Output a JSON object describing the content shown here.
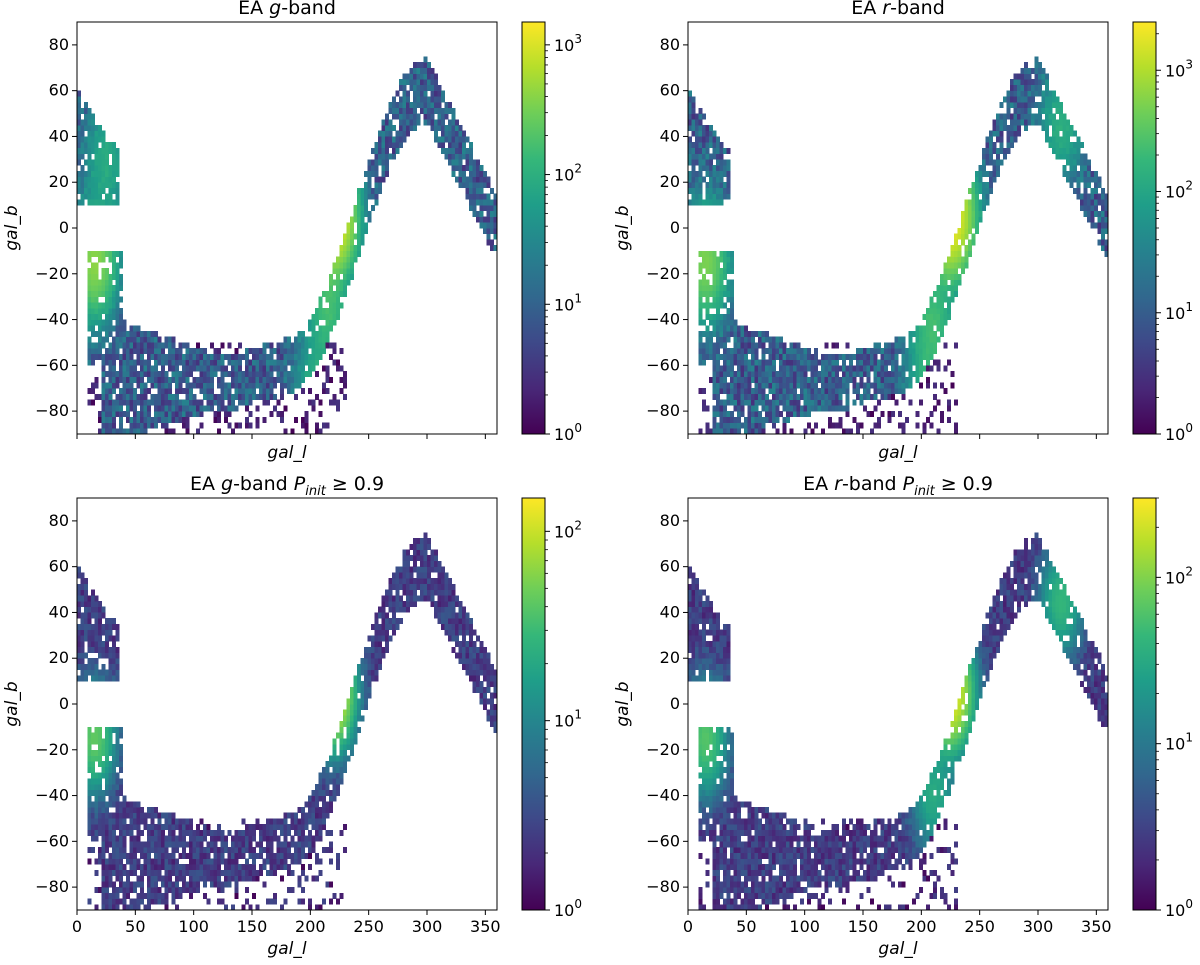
{
  "figure": {
    "colormap": "viridis",
    "colormap_stops": [
      "#440154",
      "#482878",
      "#3e4989",
      "#31688e",
      "#26828e",
      "#1f9e89",
      "#35b779",
      "#6ece58",
      "#b5de2b",
      "#fde725"
    ]
  },
  "chart_data": [
    {
      "type": "heatmap",
      "title": {
        "prefix": "EA ",
        "band": "g",
        "suffix": "-band",
        "cut": ""
      },
      "xlabel": "",
      "ylabel": "gal_b",
      "xlim": [
        0,
        360
      ],
      "ylim": [
        -90,
        90
      ],
      "xticks": [
        0,
        50,
        100,
        150,
        200,
        250,
        300,
        350
      ],
      "show_xticklabels": false,
      "yticks": [
        -80,
        -60,
        -40,
        -20,
        0,
        20,
        40,
        60,
        80
      ],
      "colorbar": {
        "scale": "log",
        "min": 1,
        "max": 1500,
        "ticks": [
          "10^0",
          "10^1",
          "10^2",
          "10^3"
        ]
      },
      "xaxis_label": "gal_l",
      "footprint": {
        "north_patch": {
          "l": [
            0,
            35
          ],
          "b": [
            10,
            60
          ]
        },
        "south_patch_l_start": 8,
        "south_patch_b_top": -10,
        "main_arc_l_range": [
          20,
          360
        ]
      },
      "hotspots": [
        {
          "l": 220,
          "b": 5,
          "count": 1300
        },
        {
          "l": 215,
          "b": -35,
          "count": 150
        },
        {
          "l": 205,
          "b": -70,
          "count": 90
        },
        {
          "l": 15,
          "b": -15,
          "count": 400
        },
        {
          "l": 25,
          "b": 30,
          "count": 80
        }
      ]
    },
    {
      "type": "heatmap",
      "title": {
        "prefix": "EA ",
        "band": "r",
        "suffix": "-band",
        "cut": ""
      },
      "xlabel": "",
      "ylabel": "gal_b",
      "xlim": [
        0,
        360
      ],
      "ylim": [
        -90,
        90
      ],
      "xticks": [
        0,
        50,
        100,
        150,
        200,
        250,
        300,
        350
      ],
      "show_xticklabels": false,
      "yticks": [
        -80,
        -60,
        -40,
        -20,
        0,
        20,
        40,
        60,
        80
      ],
      "colorbar": {
        "scale": "log",
        "min": 1,
        "max": 2500,
        "ticks": [
          "10^0",
          "10^1",
          "10^2",
          "10^3"
        ]
      },
      "xaxis_label": "gal_l",
      "footprint": {
        "north_patch": {
          "l": [
            0,
            35
          ],
          "b": [
            10,
            60
          ]
        },
        "south_patch_l_start": 8,
        "south_patch_b_top": -10,
        "main_arc_l_range": [
          20,
          360
        ]
      },
      "hotspots": [
        {
          "l": 225,
          "b": 5,
          "count": 2200
        },
        {
          "l": 210,
          "b": -40,
          "count": 200
        },
        {
          "l": 205,
          "b": -65,
          "count": 120
        },
        {
          "l": 15,
          "b": -15,
          "count": 500
        },
        {
          "l": 320,
          "b": 45,
          "count": 120
        }
      ]
    },
    {
      "type": "heatmap",
      "title": {
        "prefix": "EA ",
        "band": "g",
        "suffix": "-band ",
        "cut": "P_init ≥ 0.9"
      },
      "xlabel": "gal_l",
      "ylabel": "gal_b",
      "xlim": [
        0,
        360
      ],
      "ylim": [
        -90,
        90
      ],
      "xticks": [
        0,
        50,
        100,
        150,
        200,
        250,
        300,
        350
      ],
      "show_xticklabels": true,
      "yticks": [
        -80,
        -60,
        -40,
        -20,
        0,
        20,
        40,
        60,
        80
      ],
      "colorbar": {
        "scale": "log",
        "min": 1,
        "max": 150,
        "ticks": [
          "10^0",
          "10^1",
          "10^2"
        ]
      },
      "xaxis_label": "gal_l",
      "footprint": {
        "north_patch": {
          "l": [
            0,
            35
          ],
          "b": [
            10,
            60
          ]
        },
        "south_patch_l_start": 8,
        "south_patch_b_top": -10,
        "main_arc_l_range": [
          20,
          360
        ]
      },
      "hotspots": [
        {
          "l": 220,
          "b": 5,
          "count": 120
        },
        {
          "l": 15,
          "b": -15,
          "count": 40
        }
      ]
    },
    {
      "type": "heatmap",
      "title": {
        "prefix": "EA ",
        "band": "r",
        "suffix": "-band ",
        "cut": "P_init ≥ 0.9"
      },
      "xlabel": "gal_l",
      "ylabel": "gal_b",
      "xlim": [
        0,
        360
      ],
      "ylim": [
        -90,
        90
      ],
      "xticks": [
        0,
        50,
        100,
        150,
        200,
        250,
        300,
        350
      ],
      "show_xticklabels": true,
      "yticks": [
        -80,
        -60,
        -40,
        -20,
        0,
        20,
        40,
        60,
        80
      ],
      "colorbar": {
        "scale": "log",
        "min": 1,
        "max": 300,
        "ticks": [
          "10^0",
          "10^1",
          "10^2"
        ]
      },
      "xaxis_label": "gal_l",
      "footprint": {
        "north_patch": {
          "l": [
            0,
            35
          ],
          "b": [
            10,
            60
          ]
        },
        "south_patch_l_start": 8,
        "south_patch_b_top": -10,
        "main_arc_l_range": [
          20,
          360
        ]
      },
      "hotspots": [
        {
          "l": 225,
          "b": 5,
          "count": 250
        },
        {
          "l": 210,
          "b": -40,
          "count": 30
        },
        {
          "l": 15,
          "b": -15,
          "count": 60
        },
        {
          "l": 320,
          "b": 45,
          "count": 40
        }
      ]
    }
  ]
}
